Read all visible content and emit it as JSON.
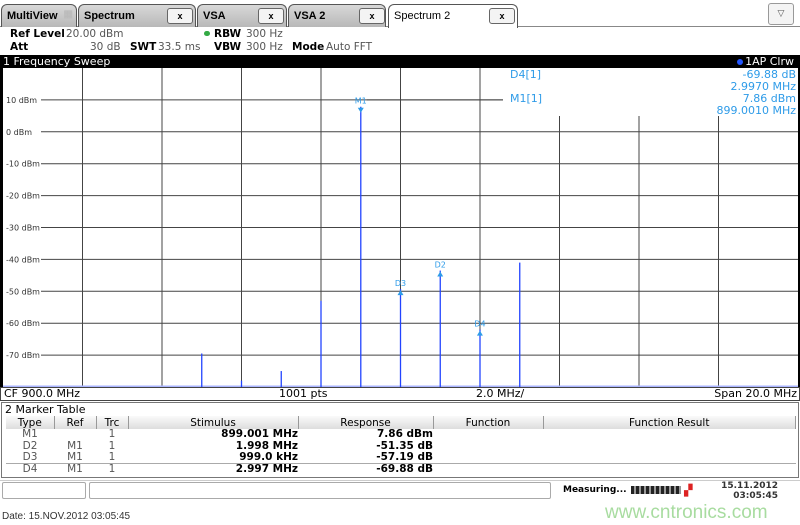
{
  "tabs": [
    {
      "label": "MultiView",
      "close": ""
    },
    {
      "label": "Spectrum",
      "close": "x"
    },
    {
      "label": "VSA",
      "close": "x"
    },
    {
      "label": "VSA 2",
      "close": "x"
    },
    {
      "label": "Spectrum 2",
      "close": "x"
    }
  ],
  "dropdown_icon": "▽",
  "header": {
    "ref_level_label": "Ref Level",
    "ref_level": "20.00 dBm",
    "att_label": "Att",
    "att": "30 dB",
    "swt_label": "SWT",
    "swt": "33.5 ms",
    "rbw_label": "RBW",
    "rbw": "300 Hz",
    "vbw_label": "VBW",
    "vbw": "300 Hz",
    "mode_label": "Mode",
    "mode": "Auto FFT",
    "rbw_indicator_color": "#33aa44"
  },
  "window_title": "1 Frequency Sweep",
  "trace_label": "1AP Clrw",
  "marker_readout": {
    "d4_label": "D4[1]",
    "d4_level": "-69.88 dB",
    "d4_freq": "2.9970 MHz",
    "m1_label": "M1[1]",
    "m1_level": "7.86 dBm",
    "m1_freq": "899.0010 MHz"
  },
  "footer": {
    "cf": "CF 900.0 MHz",
    "pts": "1001 pts",
    "div": "2.0 MHz/",
    "span": "Span 20.0 MHz"
  },
  "chart_data": {
    "type": "line",
    "xlim": [
      890,
      910
    ],
    "ylim": [
      -80,
      20
    ],
    "xunit": "MHz",
    "yunit": "dBm",
    "grid": true,
    "ytick_labels": [
      "10 dBm",
      "0 dBm",
      "-10 dBm",
      "-20 dBm",
      "-30 dBm",
      "-40 dBm",
      "-50 dBm",
      "-60 dBm",
      "-70 dBm"
    ],
    "peaks": [
      {
        "x": 895.0,
        "y": -69.5
      },
      {
        "x": 896.0,
        "y": -78
      },
      {
        "x": 897.0,
        "y": -75
      },
      {
        "x": 898.0,
        "y": -53
      },
      {
        "x": 899.001,
        "y": 7.86
      },
      {
        "x": 900.0,
        "y": -49.3
      },
      {
        "x": 901.0,
        "y": -43.5
      },
      {
        "x": 902.0,
        "y": -62
      },
      {
        "x": 903.0,
        "y": -41
      }
    ],
    "markers": [
      {
        "label": "M1",
        "x": 899.001,
        "y": 7.86
      },
      {
        "label": "D2",
        "x": 900.999,
        "y": -43.49
      },
      {
        "label": "D3",
        "x": 900.0,
        "y": -49.33
      },
      {
        "label": "D4",
        "x": 901.998,
        "y": -62.02
      }
    ],
    "trace_color": "#2244ff",
    "marker_color": "#2e9be8"
  },
  "marker_table": {
    "title": "2 Marker Table",
    "headers": [
      "Type",
      "Ref",
      "Trc",
      "Stimulus",
      "Response",
      "Function",
      "Function Result"
    ],
    "rows": [
      [
        "M1",
        "",
        "1",
        "899.001 MHz",
        "7.86 dBm",
        "",
        ""
      ],
      [
        "D2",
        "M1",
        "1",
        "1.998 MHz",
        "-51.35 dB",
        "",
        ""
      ],
      [
        "D3",
        "M1",
        "1",
        "999.0 kHz",
        "-57.19 dB",
        "",
        ""
      ],
      [
        "D4",
        "M1",
        "1",
        "2.997 MHz",
        "-69.88 dB",
        "",
        ""
      ]
    ]
  },
  "status": {
    "measuring": "Measuring...",
    "date": "15.11.2012",
    "time": "03:05:45"
  },
  "date_line": "Date: 15.NOV.2012  03:05:45",
  "watermark": "www.cntronics.com"
}
